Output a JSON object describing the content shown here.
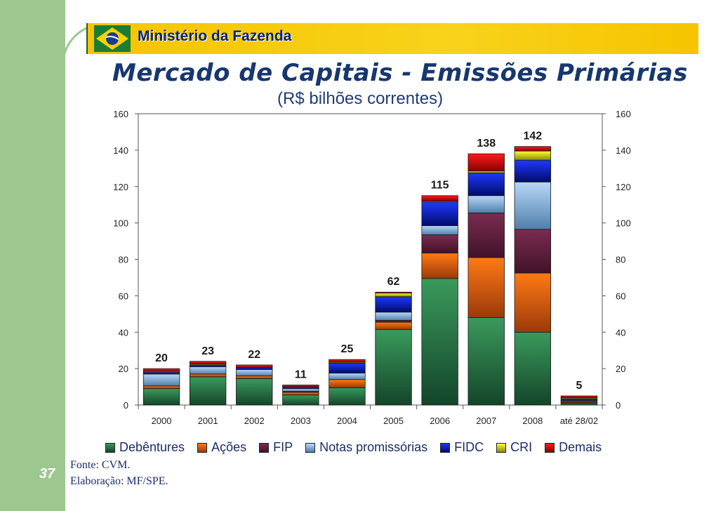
{
  "header": {
    "ministry": "Ministério da Fazenda"
  },
  "title": "Mercado de Capitais - Emissões Primárias",
  "subtitle": "(R$ bilhões correntes)",
  "page_number": "37",
  "source": "Fonte: CVM.",
  "elaboration": "Elaboração: MF/SPE.",
  "colors": {
    "accent_green": "#9cc88f",
    "header_yellow": "#f6c400",
    "title_blue": "#17376e"
  },
  "chart_data": {
    "type": "bar",
    "stacked": true,
    "categories": [
      "2000",
      "2001",
      "2002",
      "2003",
      "2004",
      "2005",
      "2006",
      "2007",
      "2008",
      "até 28/02"
    ],
    "ylim": [
      0,
      160
    ],
    "yticks": [
      0,
      20,
      40,
      60,
      80,
      100,
      120,
      140,
      160
    ],
    "y_axis_right": true,
    "xlabel": "",
    "ylabel": "",
    "series": [
      {
        "name": "Debêntures",
        "color_top": "#3a9a5c",
        "color_bottom": "#14452a",
        "values": [
          9,
          15.5,
          14.5,
          5.5,
          9.5,
          41.5,
          69.5,
          48,
          40,
          1
        ]
      },
      {
        "name": "Ações",
        "color_top": "#ff7a14",
        "color_bottom": "#9b3a0a",
        "values": [
          1.5,
          1.5,
          1.5,
          1.5,
          4.5,
          4,
          14,
          33,
          32.5,
          0.5
        ]
      },
      {
        "name": "FIP",
        "color_top": "#7a2c50",
        "color_bottom": "#421229",
        "values": [
          0,
          0,
          0,
          0.5,
          0,
          1,
          10,
          24.5,
          24,
          0.5
        ]
      },
      {
        "name": "Notas promissórias",
        "color_top": "#b8d8f8",
        "color_bottom": "#4f7fab",
        "values": [
          6.5,
          4,
          3.5,
          1.5,
          3.5,
          4.5,
          5,
          9.5,
          26,
          0.5
        ]
      },
      {
        "name": "FIDC",
        "color_top": "#1f38ff",
        "color_bottom": "#000c6a",
        "values": [
          1,
          1,
          1,
          1,
          5.5,
          8.5,
          13,
          12.5,
          12,
          1
        ]
      },
      {
        "name": "CRI",
        "color_top": "#ffff33",
        "color_bottom": "#8a8a00",
        "values": [
          0.5,
          0.5,
          0,
          0,
          0.5,
          2,
          0.5,
          1,
          5,
          0.5
        ]
      },
      {
        "name": "Demais",
        "color_top": "#ff1a1a",
        "color_bottom": "#8a0000",
        "values": [
          1.5,
          1.5,
          1.5,
          1,
          1.5,
          0.5,
          3,
          9.5,
          2.5,
          1
        ]
      }
    ],
    "totals": [
      "20",
      "23",
      "22",
      "11",
      "25",
      "62",
      "115",
      "138",
      "142",
      "5"
    ],
    "legend_position": "bottom"
  }
}
